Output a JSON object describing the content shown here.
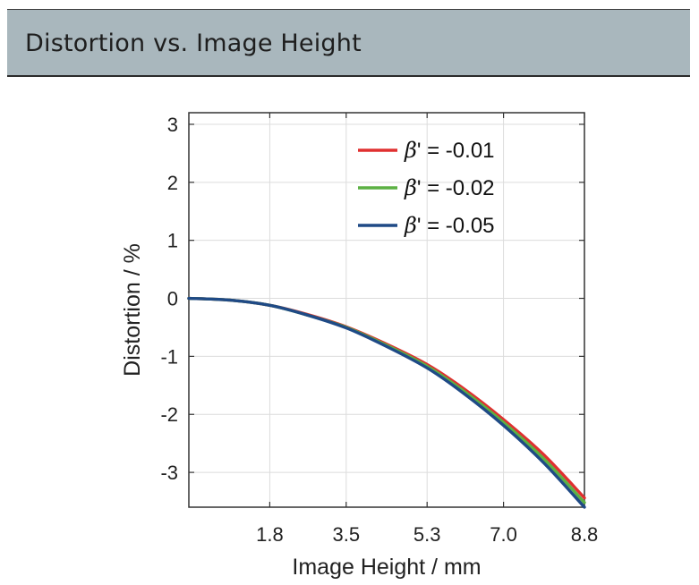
{
  "header": {
    "title": "Distortion vs. Image Height"
  },
  "chart_data": {
    "type": "line",
    "xlabel": "Image Height / mm",
    "ylabel": "Distortion / %",
    "xlim": [
      0,
      8.8
    ],
    "ylim": [
      -3.6,
      3.2
    ],
    "xticks": [
      1.8,
      3.5,
      5.3,
      7.0,
      8.8
    ],
    "xtick_labels": [
      "1.8",
      "3.5",
      "5.3",
      "7.0",
      "8.8"
    ],
    "yticks": [
      3,
      2,
      1,
      0,
      -1,
      -2,
      -3
    ],
    "ytick_labels": [
      "3",
      "2",
      "1",
      "0",
      "-1",
      "-2",
      "-3"
    ],
    "grid": true,
    "legend_position": "top-right",
    "series": [
      {
        "name": "β' = -0.01",
        "color": "#e03030",
        "x": [
          0,
          0.9,
          1.8,
          2.6,
          3.5,
          4.4,
          5.3,
          6.1,
          7.0,
          7.9,
          8.8
        ],
        "y": [
          0,
          -0.03,
          -0.12,
          -0.27,
          -0.49,
          -0.79,
          -1.14,
          -1.55,
          -2.09,
          -2.7,
          -3.44
        ]
      },
      {
        "name": "β' = -0.02",
        "color": "#5cb043",
        "x": [
          0,
          0.9,
          1.8,
          2.6,
          3.5,
          4.4,
          5.3,
          6.1,
          7.0,
          7.9,
          8.8
        ],
        "y": [
          0,
          -0.03,
          -0.12,
          -0.28,
          -0.5,
          -0.81,
          -1.17,
          -1.59,
          -2.14,
          -2.77,
          -3.52
        ]
      },
      {
        "name": "β' = -0.05",
        "color": "#1f4a86",
        "x": [
          0,
          0.9,
          1.8,
          2.6,
          3.5,
          4.4,
          5.3,
          6.1,
          7.0,
          7.9,
          8.8
        ],
        "y": [
          0,
          -0.03,
          -0.12,
          -0.28,
          -0.51,
          -0.83,
          -1.2,
          -1.63,
          -2.19,
          -2.84,
          -3.6
        ]
      }
    ],
    "legend": {
      "symbol": "β",
      "rest": [
        "' = -0.01",
        "' = -0.02",
        "' = -0.05"
      ]
    }
  }
}
